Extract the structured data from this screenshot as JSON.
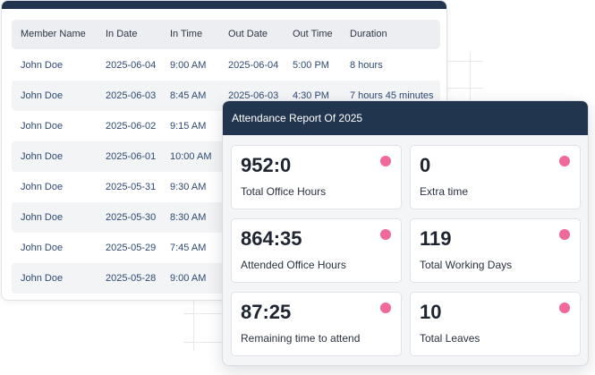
{
  "colors": {
    "header_bg": "#22354f",
    "accent_dot": "#ef6a9a",
    "link_text": "#2f4a72"
  },
  "table": {
    "columns": [
      "Member Name",
      "In Date",
      "In Time",
      "Out Date",
      "Out Time",
      "Duration"
    ],
    "rows": [
      [
        "John Doe",
        "2025-06-04",
        "9:00 AM",
        "2025-06-04",
        "5:00 PM",
        "8 hours"
      ],
      [
        "John Doe",
        "2025-06-03",
        "8:45 AM",
        "2025-06-03",
        "4:30 PM",
        "7 hours 45 minutes"
      ],
      [
        "John Doe",
        "2025-06-02",
        "9:15 AM",
        "",
        "",
        ""
      ],
      [
        "John Doe",
        "2025-06-01",
        "10:00 AM",
        "",
        "",
        ""
      ],
      [
        "John Doe",
        "2025-05-31",
        "9:30 AM",
        "",
        "",
        ""
      ],
      [
        "John Doe",
        "2025-05-30",
        "8:30 AM",
        "",
        "",
        ""
      ],
      [
        "John Doe",
        "2025-05-29",
        "7:45 AM",
        "",
        "",
        ""
      ],
      [
        "John Doe",
        "2025-05-28",
        "9:00 AM",
        "",
        "",
        ""
      ]
    ]
  },
  "report": {
    "title": "Attendance Report Of 2025",
    "stats": [
      {
        "value": "952:0",
        "label": "Total Office Hours"
      },
      {
        "value": "0",
        "label": "Extra time"
      },
      {
        "value": "864:35",
        "label": "Attended Office Hours"
      },
      {
        "value": "119",
        "label": "Total Working Days"
      },
      {
        "value": "87:25",
        "label": "Remaining time to attend"
      },
      {
        "value": "10",
        "label": "Total Leaves"
      }
    ]
  }
}
